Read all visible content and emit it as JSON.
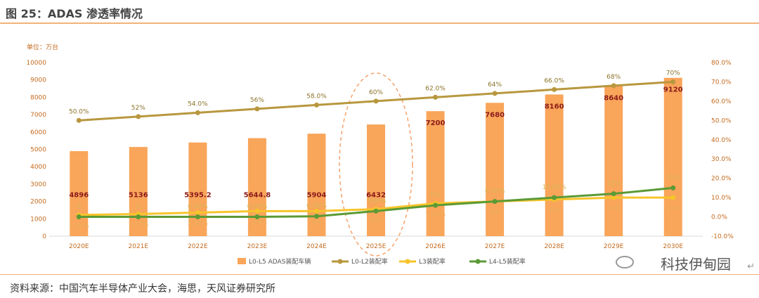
{
  "figure": {
    "title": "图 25：ADAS 渗透率情况",
    "source": "资料来源：中国汽车半导体产业大会，海思，天风证券研究所",
    "watermark": "科技伊甸园",
    "para_mark": "↵"
  },
  "chart_data": {
    "type": "bar",
    "unit_label": "单位：万台",
    "categories": [
      "2020E",
      "2021E",
      "2022E",
      "2023E",
      "2024E",
      "2025E",
      "2026E",
      "2027E",
      "2028E",
      "2029E",
      "2030E"
    ],
    "left_axis": {
      "min": 0,
      "max": 10000,
      "ticks": [
        "0",
        "1000",
        "2000",
        "3000",
        "4000",
        "5000",
        "6000",
        "7000",
        "8000",
        "9000",
        "10000"
      ]
    },
    "right_axis": {
      "min": -10,
      "max": 80,
      "ticks": [
        "-10.0%",
        "0.0%",
        "10.0%",
        "20.0%",
        "30.0%",
        "40.0%",
        "50.0%",
        "60.0%",
        "70.0%",
        "80.0%"
      ]
    },
    "colors": {
      "bar": "#f9a55a",
      "l0l2": "#b8973e",
      "l3": "#f7c42b",
      "l4l5": "#5b9a35",
      "bar_label": "#8b1a1a",
      "axis_text": "#c46a1e",
      "highlight": "#f4a36b"
    },
    "series": [
      {
        "name": "L0-L5 ADAS装配车辆",
        "kind": "bar",
        "axis": "left",
        "values": [
          4896,
          5136,
          5395.2,
          5644.8,
          5904,
          6432,
          7200,
          7680,
          8160,
          8640,
          9120
        ],
        "labels": [
          "4896",
          "5136",
          "5395.2",
          "5644.8",
          "5904",
          "6432",
          "7200",
          "7680",
          "8160",
          "8640",
          "9120"
        ]
      },
      {
        "name": "L0-L2装配率",
        "kind": "line",
        "axis": "right",
        "values": [
          50,
          52,
          54,
          56,
          58,
          60,
          62,
          64,
          66,
          68,
          70
        ],
        "labels": [
          "50.0%",
          "52%",
          "54.0%",
          "56%",
          "58.0%",
          "60%",
          "62.0%",
          "64%",
          "66.0%",
          "68%",
          "70%"
        ]
      },
      {
        "name": "L3装配率",
        "kind": "line",
        "axis": "right",
        "values": [
          1,
          1.5,
          2.2,
          3,
          3,
          4,
          7,
          8,
          9,
          10,
          10
        ],
        "labels": [
          "1.00%",
          "1.50%",
          "2.20%",
          "3%",
          "3%",
          "4%",
          "7.00%",
          "8%",
          "9%",
          "10%",
          "10%"
        ]
      },
      {
        "name": "L4-L5装配率",
        "kind": "line",
        "axis": "right",
        "values": [
          0,
          0,
          0,
          0,
          0.3,
          3,
          6,
          8,
          10,
          12,
          15
        ],
        "labels": [
          "0",
          "0",
          "0.00%",
          "0.00%",
          "0.30%",
          "3.00%",
          "6%",
          "8.00%",
          "10.00%",
          "12%",
          "15%"
        ]
      }
    ],
    "highlight_category": "2025E",
    "legend_position": "bottom",
    "grid": false
  }
}
